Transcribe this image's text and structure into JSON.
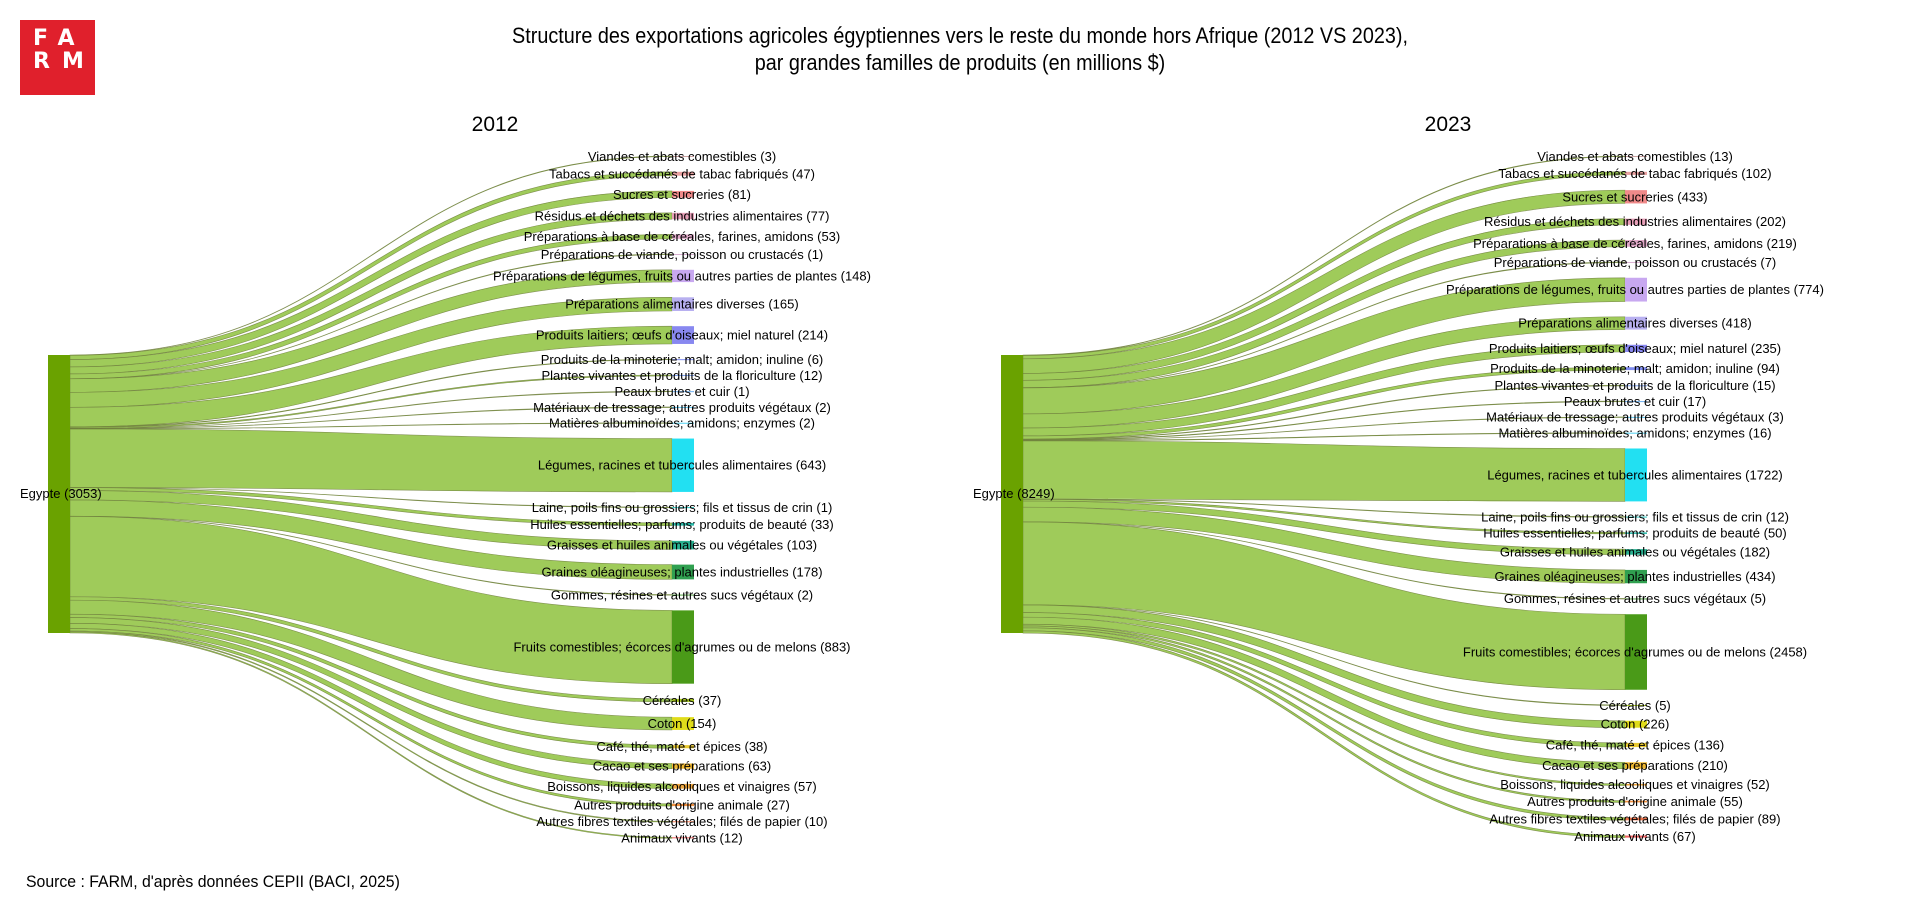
{
  "logo": {
    "text": "FARM",
    "row1": "FA",
    "row2": "RM",
    "color": "#e0202c"
  },
  "title_line1": "Structure des exportations agricoles égyptiennes vers le reste du monde hors Afrique (2012 VS 2023),",
  "title_line2": "par grandes familles de produits (en millions $)",
  "source": "Source : FARM, d'après données CEPII (BACI, 2025)",
  "colors": {
    "source_node": "#6aa200",
    "link": "#9fcb5a",
    "link_stroke": "#6b7a3a"
  },
  "chart_data": [
    {
      "type": "sankey",
      "title": "2012",
      "source": {
        "name": "Egypte",
        "value": 3053
      },
      "targets": [
        {
          "name": "Viandes et abats comestibles",
          "value": 3,
          "color": "#c9a0a0"
        },
        {
          "name": "Tabacs et succédanés de tabac fabriqués",
          "value": 47,
          "color": "#e8a0a0"
        },
        {
          "name": "Sucres et sucreries",
          "value": 81,
          "color": "#f08a8a"
        },
        {
          "name": "Résidus et déchets des industries alimentaires",
          "value": 77,
          "color": "#e8a0b8"
        },
        {
          "name": "Préparations à base de céréales, farines, amidons",
          "value": 53,
          "color": "#e0a8c8"
        },
        {
          "name": "Préparations de viande, poisson ou crustacés",
          "value": 1,
          "color": "#d8b0d0"
        },
        {
          "name": "Préparations de légumes, fruits ou autres parties de plantes",
          "value": 148,
          "color": "#c8a8f0"
        },
        {
          "name": "Préparations alimentaires diverses",
          "value": 165,
          "color": "#b8b0f0"
        },
        {
          "name": "Produits laitiers; œufs d'oiseaux; miel naturel",
          "value": 214,
          "color": "#8888f0"
        },
        {
          "name": "Produits de la minoterie; malt; amidon; inuline",
          "value": 6,
          "color": "#7f8cf0"
        },
        {
          "name": "Plantes vivantes et produits de la floriculture",
          "value": 12,
          "color": "#7aa0f0"
        },
        {
          "name": "Peaux brutes et cuir",
          "value": 1,
          "color": "#70b0f0"
        },
        {
          "name": "Matériaux de tressage; autres produits végétaux",
          "value": 2,
          "color": "#60c8f0"
        },
        {
          "name": "Matières albuminoïdes; amidons; enzymes",
          "value": 2,
          "color": "#50d0f0"
        },
        {
          "name": "Légumes, racines et tubercules alimentaires",
          "value": 643,
          "color": "#22e0f2"
        },
        {
          "name": "Laine, poils fins ou grossiers; fils et tissus de crin",
          "value": 1,
          "color": "#30c8c0"
        },
        {
          "name": "Huiles essentielles; parfums; produits de beauté",
          "value": 33,
          "color": "#2ab8a8"
        },
        {
          "name": "Graisses et huiles animales ou végétales",
          "value": 103,
          "color": "#28b090"
        },
        {
          "name": "Graines oléagineuses; plantes industrielles",
          "value": 178,
          "color": "#30a050"
        },
        {
          "name": "Gommes, résines et autres sucs végétaux",
          "value": 2,
          "color": "#50a040"
        },
        {
          "name": "Fruits comestibles; écorces d'agrumes ou de melons",
          "value": 883,
          "color": "#4a9a18"
        },
        {
          "name": "Céréales",
          "value": 37,
          "color": "#a8c820"
        },
        {
          "name": "Coton",
          "value": 154,
          "color": "#e0dc1a"
        },
        {
          "name": "Café, thé, maté et épices",
          "value": 38,
          "color": "#e8c830"
        },
        {
          "name": "Cacao et ses préparations",
          "value": 63,
          "color": "#f0b830"
        },
        {
          "name": "Boissons, liquides alcooliques et vinaigres",
          "value": 57,
          "color": "#f0a840"
        },
        {
          "name": "Autres produits d'origine animale",
          "value": 27,
          "color": "#f09040"
        },
        {
          "name": "Autres fibres textiles végétales; filés de papier",
          "value": 10,
          "color": "#f07850"
        },
        {
          "name": "Animaux vivants",
          "value": 12,
          "color": "#f06060"
        }
      ]
    },
    {
      "type": "sankey",
      "title": "2023",
      "source": {
        "name": "Egypte",
        "value": 8249
      },
      "targets": [
        {
          "name": "Viandes et abats comestibles",
          "value": 13,
          "color": "#c9a0a0"
        },
        {
          "name": "Tabacs et succédanés de tabac fabriqués",
          "value": 102,
          "color": "#e8a0a0"
        },
        {
          "name": "Sucres et sucreries",
          "value": 433,
          "color": "#f08a8a"
        },
        {
          "name": "Résidus et déchets des industries alimentaires",
          "value": 202,
          "color": "#e8a0b8"
        },
        {
          "name": "Préparations à base de céréales, farines, amidons",
          "value": 219,
          "color": "#e0a8c8"
        },
        {
          "name": "Préparations de viande, poisson ou crustacés",
          "value": 7,
          "color": "#d8b0d0"
        },
        {
          "name": "Préparations de légumes, fruits ou autres parties de plantes",
          "value": 774,
          "color": "#c8a8f0"
        },
        {
          "name": "Préparations alimentaires diverses",
          "value": 418,
          "color": "#b8b0f0"
        },
        {
          "name": "Produits laitiers; œufs d'oiseaux; miel naturel",
          "value": 235,
          "color": "#8888f0"
        },
        {
          "name": "Produits de la minoterie; malt; amidon; inuline",
          "value": 94,
          "color": "#7f8cf0"
        },
        {
          "name": "Plantes vivantes et produits de la floriculture",
          "value": 15,
          "color": "#7aa0f0"
        },
        {
          "name": "Peaux brutes et cuir",
          "value": 17,
          "color": "#70b0f0"
        },
        {
          "name": "Matériaux de tressage; autres produits végétaux",
          "value": 3,
          "color": "#60c8f0"
        },
        {
          "name": "Matières albuminoïdes; amidons; enzymes",
          "value": 16,
          "color": "#50d0f0"
        },
        {
          "name": "Légumes, racines et tubercules alimentaires",
          "value": 1722,
          "color": "#22e0f2"
        },
        {
          "name": "Laine, poils fins ou grossiers; fils et tissus de crin",
          "value": 12,
          "color": "#30c8c0"
        },
        {
          "name": "Huiles essentielles; parfums; produits de beauté",
          "value": 50,
          "color": "#2ab8a8"
        },
        {
          "name": "Graisses et huiles animales ou végétales",
          "value": 182,
          "color": "#28b090"
        },
        {
          "name": "Graines oléagineuses; plantes industrielles",
          "value": 434,
          "color": "#30a050"
        },
        {
          "name": "Gommes, résines et autres sucs végétaux",
          "value": 5,
          "color": "#50a040"
        },
        {
          "name": "Fruits comestibles; écorces d'agrumes ou de melons",
          "value": 2458,
          "color": "#4a9a18"
        },
        {
          "name": "Céréales",
          "value": 5,
          "color": "#a8c820"
        },
        {
          "name": "Coton",
          "value": 226,
          "color": "#e0dc1a"
        },
        {
          "name": "Café, thé, maté et épices",
          "value": 136,
          "color": "#e8c830"
        },
        {
          "name": "Cacao et ses préparations",
          "value": 210,
          "color": "#f0b830"
        },
        {
          "name": "Boissons, liquides alcooliques et vinaigres",
          "value": 52,
          "color": "#f0a840"
        },
        {
          "name": "Autres produits d'origine animale",
          "value": 55,
          "color": "#f09040"
        },
        {
          "name": "Autres fibres textiles végétales; filés de papier",
          "value": 89,
          "color": "#f07850"
        },
        {
          "name": "Animaux vivants",
          "value": 67,
          "color": "#f06060"
        }
      ]
    }
  ]
}
